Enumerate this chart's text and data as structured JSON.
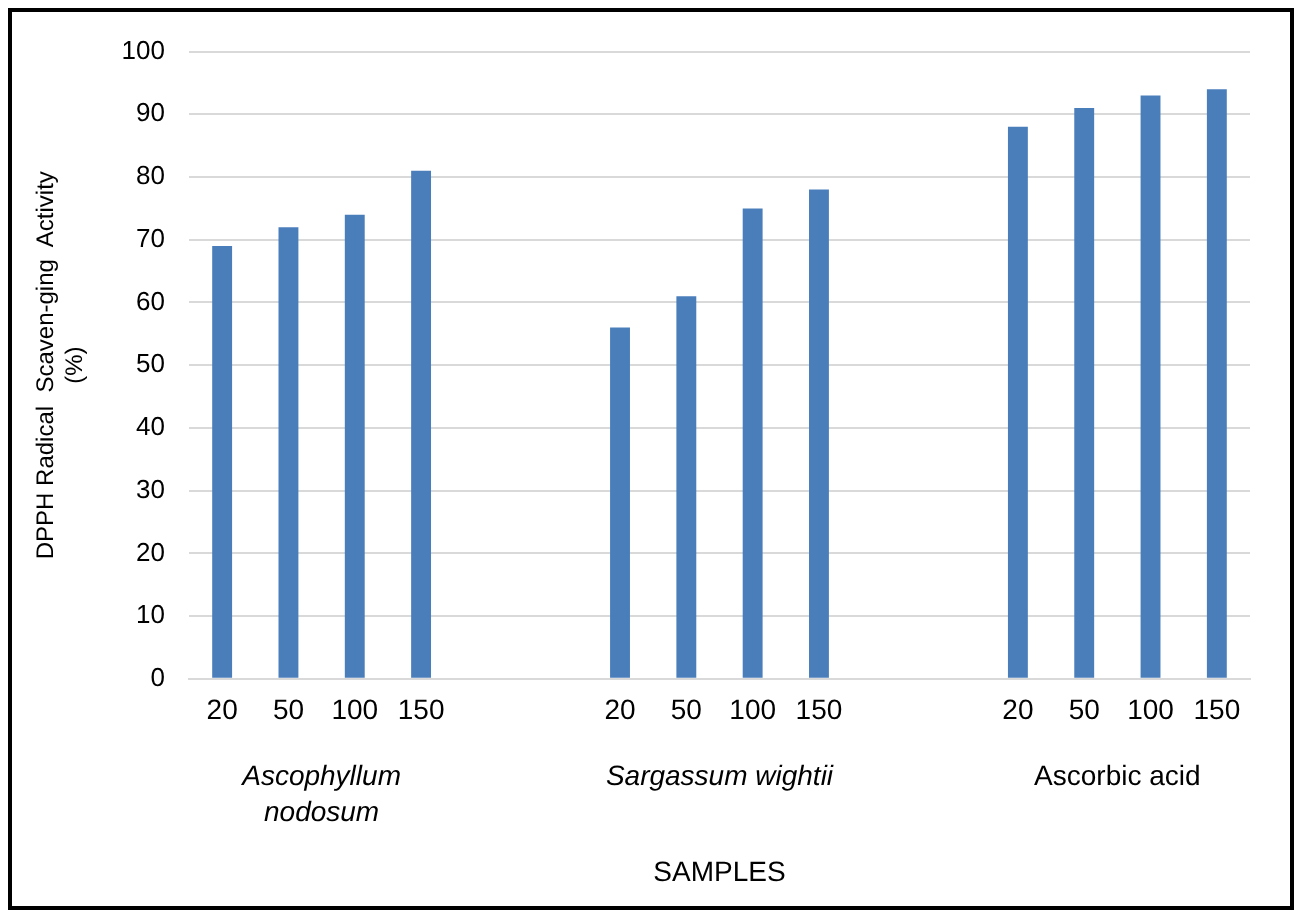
{
  "chart_data": {
    "type": "bar",
    "ylabel": "DPPH Radical  Scaven-ging  Activity\n(%)",
    "xlabel": "SAMPLES",
    "categories": [
      "20",
      "50",
      "100",
      "150",
      null,
      null,
      "20",
      "50",
      "100",
      "150",
      null,
      null,
      "20",
      "50",
      "100",
      "150"
    ],
    "values": [
      69,
      72,
      74,
      81,
      null,
      null,
      56,
      61,
      75,
      78,
      null,
      null,
      88,
      91,
      93,
      94
    ],
    "color": "#4a7ebb",
    "ylim": [
      0,
      100
    ],
    "yticks": [
      0,
      10,
      20,
      30,
      40,
      50,
      60,
      70,
      80,
      90,
      100
    ],
    "grid": "y",
    "annotations": [
      "Ascophyllum nodosum",
      "Sargassum wightii",
      "Ascorbic acid"
    ]
  }
}
